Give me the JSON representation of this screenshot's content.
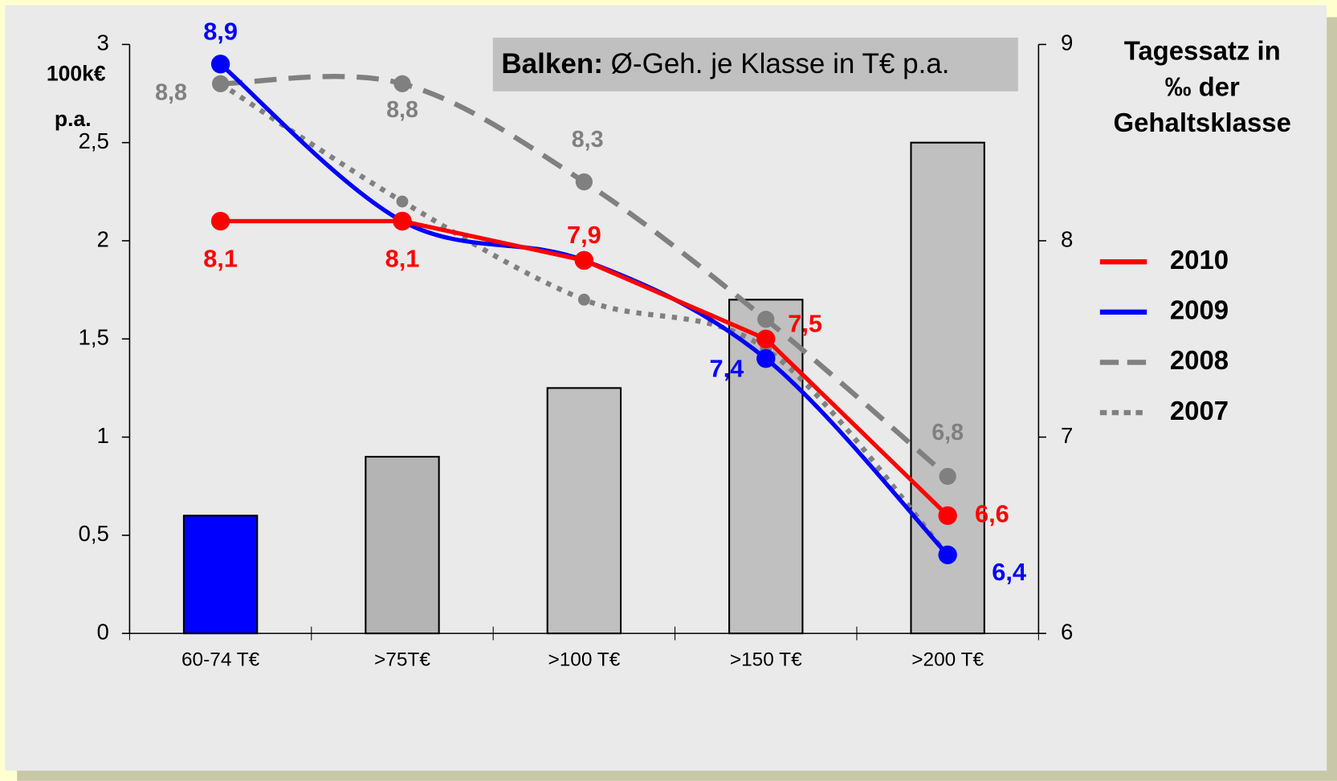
{
  "chart_data": {
    "type": "combo",
    "annotation": {
      "bold": "Balken:",
      "text": " Ø-Geh. je Klasse in T€ p.a."
    },
    "ylabel": [
      "100k€",
      "p.a."
    ],
    "y2label": [
      "Tagessatz in",
      "‰  der",
      "Gehaltsklasse"
    ],
    "categories": [
      "60-74 T€",
      ">75T€",
      ">100 T€",
      ">150 T€",
      ">200 T€"
    ],
    "bars": {
      "values": [
        0.6,
        0.9,
        1.25,
        1.7,
        2.5
      ],
      "colors": [
        "#0000ff",
        "#b4b4b4",
        "#c0c0c0",
        "#c0c0c0",
        "#c0c0c0"
      ]
    },
    "ylim": [
      0,
      3
    ],
    "yticks": [
      0,
      {
        "value": 0.5,
        "label": "0,5"
      },
      1,
      {
        "value": 1.5,
        "label": "1,5"
      },
      2,
      {
        "value": 2.5,
        "label": "2,5"
      },
      3
    ],
    "y2lim": [
      6,
      9
    ],
    "y2ticks": [
      6,
      7,
      8,
      9
    ],
    "series": [
      {
        "name": "2010",
        "color": "#ff0000",
        "style": "solid",
        "smooth": false,
        "axis": "y2",
        "values": [
          8.1,
          8.1,
          7.9,
          7.5,
          6.6
        ],
        "value_labels": [
          "8,1",
          "8,1",
          "7,9",
          "7,5",
          "6,6"
        ]
      },
      {
        "name": "2009",
        "color": "#0000ff",
        "style": "solid",
        "smooth": true,
        "axis": "y2",
        "values": [
          8.9,
          8.1,
          7.9,
          7.4,
          6.4
        ],
        "value_labels": [
          "8,9",
          null,
          null,
          "7,4",
          "6,4"
        ]
      },
      {
        "name": "2008",
        "color": "#808080",
        "style": "dashed",
        "smooth": true,
        "axis": "y2",
        "values": [
          8.8,
          8.8,
          8.3,
          7.6,
          6.8
        ],
        "value_labels": [
          "8,8",
          "8,8",
          "8,3",
          null,
          "6,8"
        ]
      },
      {
        "name": "2007",
        "color": "#808080",
        "style": "dotted",
        "smooth": true,
        "axis": "y2",
        "values": [
          8.8,
          8.2,
          7.7,
          7.45,
          6.4
        ],
        "value_labels": [
          null,
          null,
          null,
          null,
          null
        ]
      }
    ]
  }
}
